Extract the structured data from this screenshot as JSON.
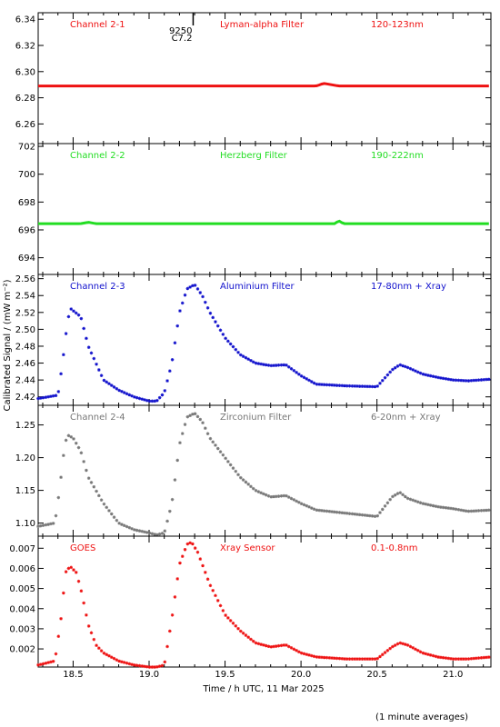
{
  "x_axis_label": "Time / h UTC, 11 Mar 2025",
  "y_axis_label": "Calibrated Signal / (mW m⁻²)",
  "footer_note": "(1 minute averages)",
  "flare_marker": {
    "line1": "9250",
    "line2": "C7.2",
    "time": 19.29
  },
  "colors": {
    "red": "#ee1111",
    "green": "#22dd22",
    "blue": "#1111cc",
    "gray": "#777777",
    "axis": "#000000"
  },
  "chart_data": [
    {
      "type": "scatter",
      "name": "Channel 2-1",
      "filter": "Lyman-alpha Filter",
      "band": "120-123nm",
      "color": "red",
      "xlim": [
        18.27,
        21.25
      ],
      "ylim": [
        6.245,
        6.345
      ],
      "yticks": [
        "6.26",
        "6.28",
        "6.30",
        "6.32",
        "6.34"
      ],
      "x": [
        18.27,
        20.1,
        20.15,
        20.2,
        20.25,
        21.25
      ],
      "y": [
        6.289,
        6.289,
        6.291,
        6.29,
        6.289,
        6.289
      ]
    },
    {
      "type": "scatter",
      "name": "Channel 2-2",
      "filter": "Herzberg Filter",
      "band": "190-222nm",
      "color": "green",
      "xlim": [
        18.27,
        21.25
      ],
      "ylim": [
        692.8,
        702.2
      ],
      "yticks": [
        "694",
        "696",
        "698",
        "700",
        "702"
      ],
      "x": [
        18.27,
        18.55,
        18.6,
        18.65,
        20.22,
        20.25,
        20.28,
        21.25
      ],
      "y": [
        696.45,
        696.45,
        696.55,
        696.45,
        696.45,
        696.65,
        696.45,
        696.45
      ]
    },
    {
      "type": "scatter",
      "name": "Channel 2-3",
      "filter": "Aluminium Filter",
      "band": "17-80nm + Xray",
      "color": "blue",
      "xlim": [
        18.27,
        21.25
      ],
      "ylim": [
        2.41,
        2.565
      ],
      "yticks": [
        "2.42",
        "2.44",
        "2.46",
        "2.48",
        "2.50",
        "2.52",
        "2.54",
        "2.56"
      ],
      "x": [
        18.27,
        18.4,
        18.43,
        18.46,
        18.48,
        18.55,
        18.6,
        18.7,
        18.8,
        18.9,
        19.0,
        19.05,
        19.1,
        19.15,
        19.2,
        19.25,
        19.3,
        19.35,
        19.4,
        19.5,
        19.6,
        19.7,
        19.8,
        19.9,
        20.0,
        20.1,
        20.3,
        20.5,
        20.6,
        20.65,
        20.7,
        20.8,
        20.9,
        21.0,
        21.1,
        21.25
      ],
      "y": [
        2.418,
        2.422,
        2.46,
        2.505,
        2.525,
        2.515,
        2.48,
        2.44,
        2.428,
        2.42,
        2.415,
        2.415,
        2.425,
        2.46,
        2.52,
        2.548,
        2.553,
        2.54,
        2.52,
        2.49,
        2.47,
        2.46,
        2.457,
        2.458,
        2.445,
        2.435,
        2.433,
        2.432,
        2.452,
        2.458,
        2.455,
        2.447,
        2.443,
        2.44,
        2.439,
        2.441
      ]
    },
    {
      "type": "scatter",
      "name": "Channel 2-4",
      "filter": "Zirconium Filter",
      "band": "6-20nm + Xray",
      "color": "gray",
      "xlim": [
        18.27,
        21.25
      ],
      "ylim": [
        1.08,
        1.28
      ],
      "yticks": [
        "1.10",
        "1.15",
        "1.20",
        "1.25"
      ],
      "x": [
        18.27,
        18.38,
        18.41,
        18.44,
        18.46,
        18.5,
        18.55,
        18.6,
        18.7,
        18.8,
        18.9,
        19.0,
        19.05,
        19.1,
        19.15,
        19.2,
        19.25,
        19.3,
        19.35,
        19.4,
        19.5,
        19.6,
        19.7,
        19.8,
        19.9,
        20.0,
        20.1,
        20.3,
        20.5,
        20.6,
        20.65,
        20.7,
        20.8,
        20.9,
        21.0,
        21.1,
        21.25
      ],
      "y": [
        1.095,
        1.1,
        1.15,
        1.21,
        1.235,
        1.23,
        1.21,
        1.17,
        1.13,
        1.1,
        1.09,
        1.085,
        1.082,
        1.085,
        1.13,
        1.22,
        1.262,
        1.268,
        1.255,
        1.23,
        1.2,
        1.17,
        1.15,
        1.14,
        1.142,
        1.13,
        1.12,
        1.115,
        1.11,
        1.14,
        1.147,
        1.138,
        1.13,
        1.125,
        1.122,
        1.118,
        1.12
      ]
    },
    {
      "type": "scatter",
      "name": "GOES",
      "filter": "Xray Sensor",
      "band": "0.1-0.8nm",
      "color": "red",
      "xlim": [
        18.27,
        21.25
      ],
      "ylim": [
        0.0011,
        0.0076
      ],
      "yticks": [
        "0.002",
        "0.003",
        "0.004",
        "0.005",
        "0.006",
        "0.007"
      ],
      "x": [
        18.27,
        18.38,
        18.42,
        18.45,
        18.48,
        18.52,
        18.55,
        18.6,
        18.65,
        18.7,
        18.8,
        18.9,
        19.0,
        19.05,
        19.1,
        19.15,
        19.2,
        19.25,
        19.28,
        19.32,
        19.4,
        19.5,
        19.6,
        19.7,
        19.8,
        19.9,
        20.0,
        20.1,
        20.3,
        20.5,
        20.6,
        20.65,
        20.7,
        20.8,
        20.9,
        21.0,
        21.1,
        21.25
      ],
      "y": [
        0.0012,
        0.0014,
        0.0035,
        0.0058,
        0.0061,
        0.0058,
        0.005,
        0.0032,
        0.0022,
        0.0018,
        0.0014,
        0.0012,
        0.0011,
        0.0011,
        0.0012,
        0.0035,
        0.0062,
        0.0072,
        0.0073,
        0.0068,
        0.0052,
        0.0037,
        0.0029,
        0.0023,
        0.0021,
        0.0022,
        0.0018,
        0.0016,
        0.0015,
        0.0015,
        0.0021,
        0.0023,
        0.0022,
        0.0018,
        0.0016,
        0.0015,
        0.0015,
        0.0016
      ]
    }
  ],
  "shared_x": {
    "xticks": [
      18.5,
      19.0,
      19.5,
      20.0,
      20.5,
      21.0
    ],
    "xtick_labels": [
      "18.5",
      "19.0",
      "19.5",
      "20.0",
      "20.5",
      "21.0"
    ]
  }
}
